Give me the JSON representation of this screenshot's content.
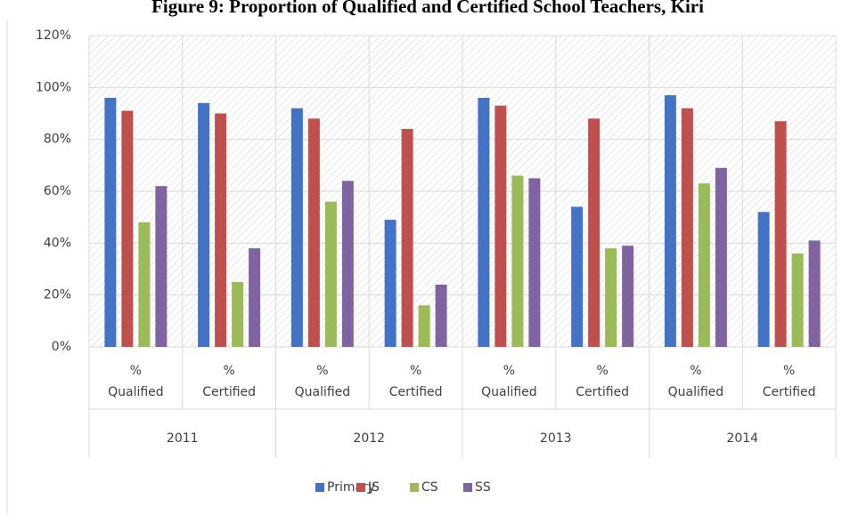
{
  "chart_data": {
    "type": "bar",
    "title": "Figure 9: Proportion of Qualified and Certified School Teachers, Kiri",
    "categories": [
      "% Qualified",
      "% Certified",
      "% Qualified",
      "% Certified",
      "% Qualified",
      "% Certified",
      "% Qualified",
      "% Certified"
    ],
    "groups": [
      "2011",
      "2012",
      "2013",
      "2014"
    ],
    "series": [
      {
        "name": "Primary",
        "color": "#4472c4",
        "values": [
          96,
          94,
          92,
          49,
          96,
          54,
          97,
          52
        ]
      },
      {
        "name": "JS",
        "color": "#c0504d",
        "values": [
          91,
          90,
          88,
          84,
          93,
          88,
          92,
          87
        ]
      },
      {
        "name": "CS",
        "color": "#9bbb59",
        "values": [
          48,
          25,
          56,
          16,
          66,
          38,
          63,
          36
        ]
      },
      {
        "name": "SS",
        "color": "#8064a2",
        "values": [
          62,
          38,
          64,
          24,
          65,
          39,
          69,
          41
        ]
      }
    ],
    "ylim": [
      0,
      120
    ],
    "yticks": [
      {
        "value": 0,
        "label": "0%"
      },
      {
        "value": 20,
        "label": "20%"
      },
      {
        "value": 40,
        "label": "40%"
      },
      {
        "value": 60,
        "label": "60%"
      },
      {
        "value": 80,
        "label": "80%"
      },
      {
        "value": 100,
        "label": "100%"
      },
      {
        "value": 120,
        "label": "120%"
      }
    ],
    "grid": true,
    "legend": "bottom"
  }
}
